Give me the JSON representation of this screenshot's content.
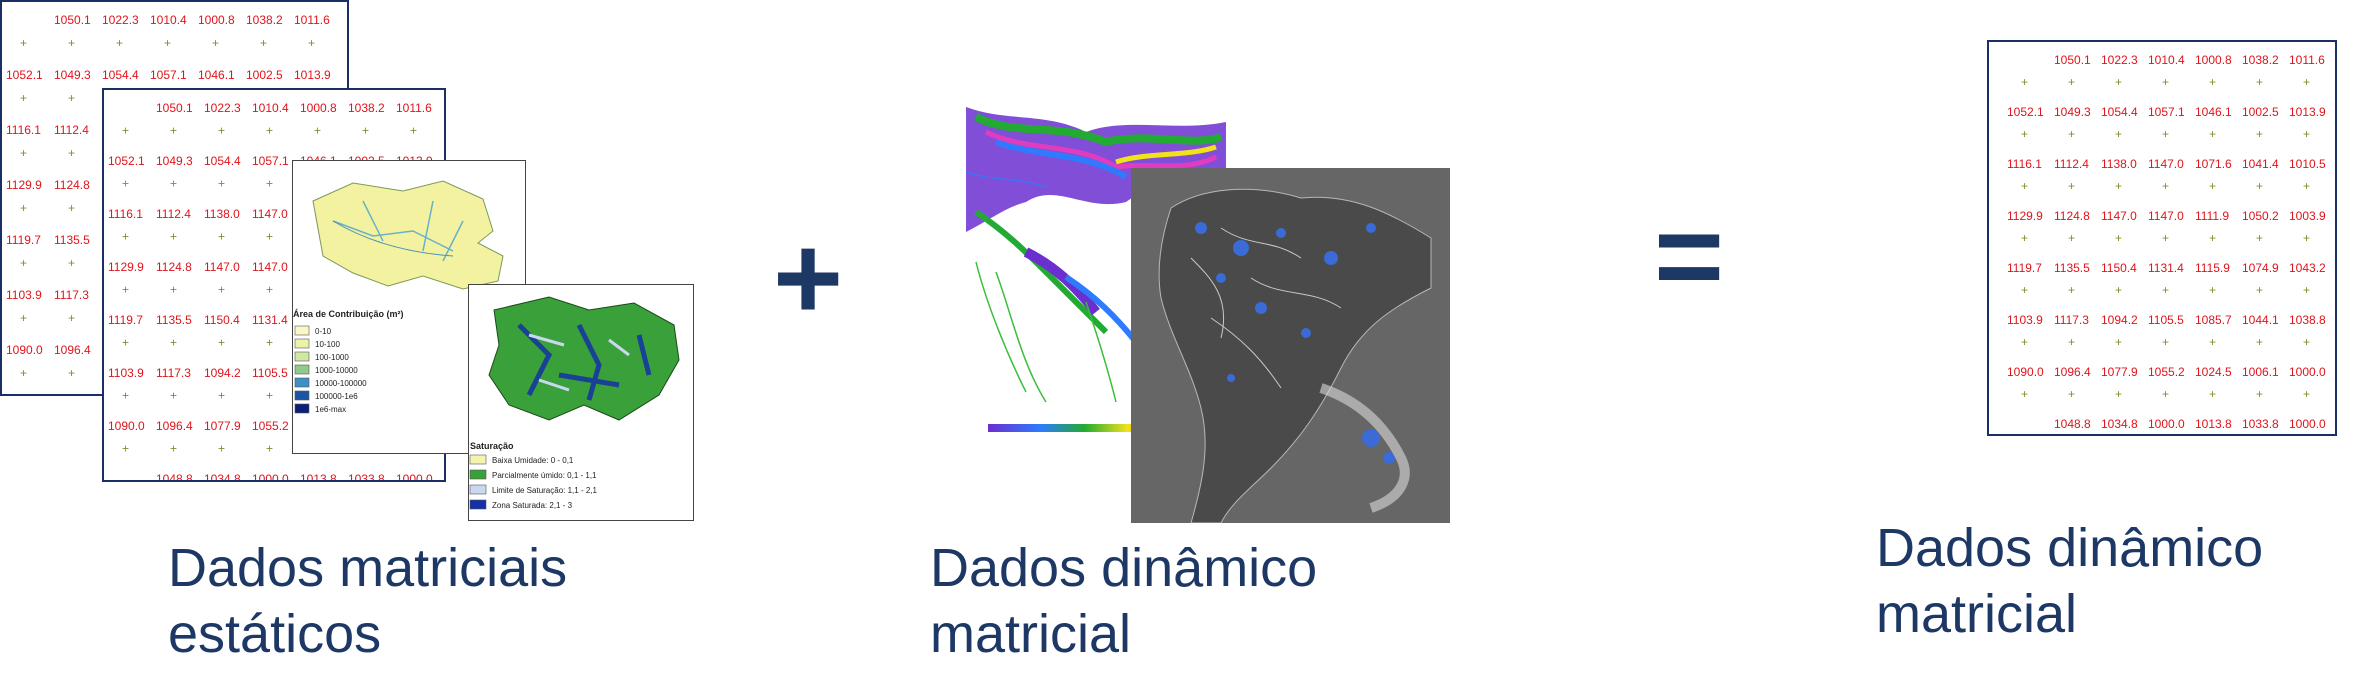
{
  "static_grid": {
    "rows": [
      [
        "",
        "1050.1",
        "1022.3",
        "1010.4",
        "1000.8",
        "1038.2",
        "1011.6"
      ],
      [
        "1052.1",
        "1049.3",
        "1054.4",
        "1057.1",
        "1046.1",
        "1002.5",
        "1013.9"
      ],
      [
        "1116.1",
        "1112.4",
        "1138.0",
        "1147.0",
        "1071.6",
        "1041.4",
        "1010.5"
      ],
      [
        "1129.9",
        "1124.8",
        "1147.0",
        "1147.0",
        "1111.9",
        "1050.2",
        "1003.9"
      ],
      [
        "1119.7",
        "1135.5",
        "1150.4",
        "1131.4",
        "1115.9",
        "1074.9",
        "1043.2"
      ],
      [
        "1103.9",
        "1117.3",
        "1094.2",
        "1105.5",
        "1085.7",
        "1044.1",
        "1038.8"
      ],
      [
        "1090.0",
        "1096.4",
        "1077.9",
        "1055.2",
        "1024.5",
        "1006.1",
        "1000.0"
      ],
      [
        "",
        "1048.8",
        "1034.8",
        "1000.0",
        "1013.8",
        "1033.8",
        "1000.0"
      ]
    ]
  },
  "contribution_legend": {
    "title": "Área de Contribuição (m²)",
    "items": [
      {
        "label": "0-10",
        "color": "#fbf8c8"
      },
      {
        "label": "10-100",
        "color": "#ecf2a8"
      },
      {
        "label": "100-1000",
        "color": "#cfe8a2"
      },
      {
        "label": "1000-10000",
        "color": "#8fca8a"
      },
      {
        "label": "10000-100000",
        "color": "#3c8fc7"
      },
      {
        "label": "100000-1e6",
        "color": "#1a56a8"
      },
      {
        "label": "1e6-max",
        "color": "#0d1f7a"
      }
    ]
  },
  "saturation_legend": {
    "title": "Saturação",
    "items": [
      {
        "label": "Baixa Umidade: 0 - 0,1",
        "color": "#f5f3b0"
      },
      {
        "label": "Parcialmente úmido: 0,1 - 1,1",
        "color": "#3aa13a"
      },
      {
        "label": "Limite de Saturação: 1,1 - 2,1",
        "color": "#c9d8ee"
      },
      {
        "label": "Zona Saturada: 2,1 - 3",
        "color": "#1431a8"
      }
    ]
  },
  "operators": {
    "plus": "+",
    "equals": "="
  },
  "captions": {
    "left": {
      "line1": "Dados matriciais",
      "line2": "estáticos"
    },
    "middle": {
      "line1": "Dados dinâmico",
      "line2": "matricial"
    },
    "right": {
      "line1": "Dados dinâmico",
      "line2": "matricial"
    }
  },
  "colors": {
    "text_blue": "#1d3864",
    "grid_red": "#e0141b",
    "grid_olive": "#8a8a2a",
    "frame": "#1b2f66"
  }
}
